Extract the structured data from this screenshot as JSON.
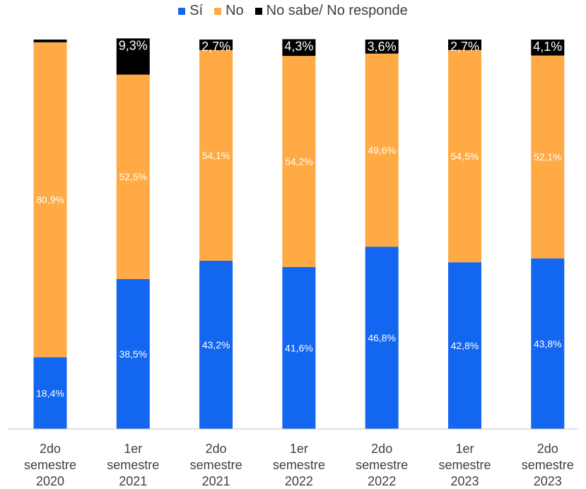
{
  "chart_data": {
    "type": "bar",
    "stacked": true,
    "categories": [
      [
        "2do",
        "semestre",
        "2020"
      ],
      [
        "1er",
        "semestre",
        "2021"
      ],
      [
        "2do",
        "semestre",
        "2021"
      ],
      [
        "1er",
        "semestre",
        "2022"
      ],
      [
        "2do",
        "semestre",
        "2022"
      ],
      [
        "1er",
        "semestre",
        "2023"
      ],
      [
        "2do",
        "semestre",
        "2023"
      ]
    ],
    "series": [
      {
        "name": "Sí",
        "color": "#1366F0",
        "values": [
          18.4,
          38.5,
          43.2,
          41.6,
          46.8,
          42.8,
          43.8
        ],
        "labels": [
          "18,4%",
          "38,5%",
          "43,2%",
          "41,6%",
          "46,8%",
          "42,8%",
          "43,8%"
        ]
      },
      {
        "name": "No",
        "color": "#FFAA44",
        "values": [
          80.9,
          52.5,
          54.1,
          54.2,
          49.6,
          54.5,
          52.1
        ],
        "labels": [
          "80,9%",
          "52,5%",
          "54,1%",
          "54,2%",
          "49,6%",
          "54,5%",
          "52,1%"
        ]
      },
      {
        "name": "No sabe/ No responde",
        "color": "#000000",
        "values": [
          0.7,
          9.3,
          2.7,
          4.3,
          3.6,
          2.7,
          4.1
        ],
        "labels": [
          "",
          "9,3%",
          "2,7%",
          "4,3%",
          "3,6%",
          "2,7%",
          "4,1%"
        ]
      }
    ],
    "ylim": [
      0,
      100
    ],
    "grid": false,
    "legend": "top-center",
    "xlabel": "",
    "ylabel": ""
  }
}
